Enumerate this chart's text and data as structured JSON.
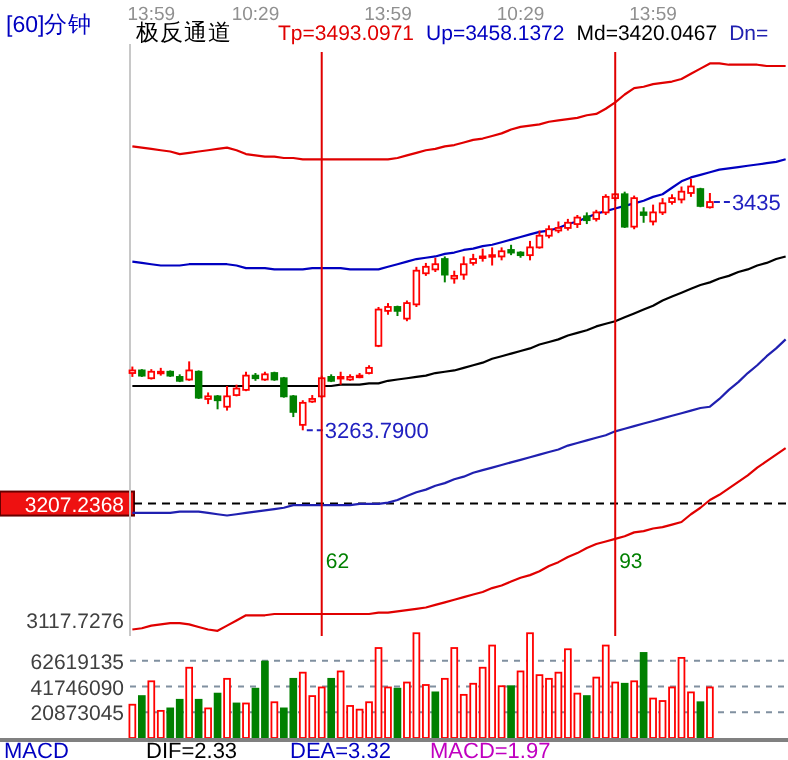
{
  "chart_data": [
    {
      "type": "candlestick",
      "title": "[60]分钟",
      "subtitle": "极反通道",
      "categories": [
        null,
        null,
        "13:59",
        null,
        null,
        null,
        null,
        null,
        null,
        null,
        null,
        null,
        null,
        "10:29",
        null,
        null,
        null,
        null,
        null,
        null,
        null,
        null,
        null,
        null,
        null,
        null,
        null,
        "13:59",
        null,
        null,
        null,
        null,
        null,
        null,
        null,
        null,
        null,
        null,
        null,
        null,
        null,
        "10:29",
        null,
        null,
        null,
        null,
        null,
        null,
        null,
        null,
        null,
        null,
        null,
        null,
        null,
        "13:59",
        null,
        null,
        null,
        null,
        null,
        null,
        null,
        null,
        null,
        null,
        null,
        null,
        null,
        null
      ],
      "ohlc": [
        [
          3308,
          3313,
          3305,
          3310
        ],
        [
          3310,
          3311,
          3305,
          3306
        ],
        [
          3304,
          3311,
          3303,
          3309
        ],
        [
          3308,
          3312,
          3306,
          3309
        ],
        [
          3309,
          3310,
          3305,
          3306
        ],
        [
          3305,
          3307,
          3301,
          3302
        ],
        [
          3303,
          3317,
          3302,
          3310
        ],
        [
          3309,
          3310,
          3288,
          3289
        ],
        [
          3288,
          3293,
          3284,
          3290
        ],
        [
          3290,
          3291,
          3280,
          3287
        ],
        [
          3282,
          3298,
          3279,
          3290
        ],
        [
          3291,
          3299,
          3290,
          3296
        ],
        [
          3295,
          3309,
          3294,
          3306
        ],
        [
          3306,
          3308,
          3302,
          3304
        ],
        [
          3303,
          3309,
          3302,
          3307
        ],
        [
          3308,
          3309,
          3302,
          3303
        ],
        [
          3304,
          3305,
          3289,
          3290
        ],
        [
          3290,
          3291,
          3274,
          3278
        ],
        [
          3268,
          3287,
          3263.79,
          3285
        ],
        [
          3286,
          3291,
          3285,
          3288
        ],
        [
          3290,
          3306,
          3289,
          3304
        ],
        [
          3305,
          3307,
          3301,
          3302
        ],
        [
          3304,
          3309,
          3299,
          3305
        ],
        [
          3303,
          3307,
          3302,
          3305
        ],
        [
          3305,
          3308,
          3304,
          3306
        ],
        [
          3308,
          3314,
          3307,
          3312
        ],
        [
          3329,
          3359,
          3328,
          3357
        ],
        [
          3356,
          3362,
          3353,
          3359
        ],
        [
          3359,
          3360,
          3352,
          3356
        ],
        [
          3350,
          3364,
          3348,
          3362
        ],
        [
          3361,
          3390,
          3359,
          3387
        ],
        [
          3385,
          3393,
          3383,
          3390
        ],
        [
          3388,
          3397,
          3386,
          3392
        ],
        [
          3396,
          3398,
          3378,
          3384
        ],
        [
          3381,
          3387,
          3377,
          3383
        ],
        [
          3384,
          3398,
          3380,
          3392
        ],
        [
          3393,
          3400,
          3391,
          3396
        ],
        [
          3397,
          3404,
          3394,
          3398
        ],
        [
          3398,
          3405,
          3391,
          3399
        ],
        [
          3398,
          3405,
          3395,
          3402
        ],
        [
          3403,
          3407,
          3399,
          3401
        ],
        [
          3401,
          3402,
          3397,
          3399
        ],
        [
          3399,
          3410,
          3395,
          3405
        ],
        [
          3405,
          3418,
          3404,
          3414
        ],
        [
          3414,
          3422,
          3412,
          3419
        ],
        [
          3418,
          3425,
          3416,
          3420
        ],
        [
          3420,
          3427,
          3418,
          3424
        ],
        [
          3423,
          3430,
          3420,
          3428
        ],
        [
          3429,
          3432,
          3423,
          3426
        ],
        [
          3427,
          3434,
          3425,
          3432
        ],
        [
          3432,
          3446,
          3430,
          3444
        ],
        [
          3443,
          3447,
          3441,
          3446
        ],
        [
          3446,
          3448,
          3420,
          3421
        ],
        [
          3421,
          3445,
          3419,
          3443
        ],
        [
          3432,
          3436,
          3424,
          3430
        ],
        [
          3425,
          3438,
          3422,
          3432
        ],
        [
          3432,
          3443,
          3430,
          3439
        ],
        [
          3440,
          3446,
          3438,
          3443
        ],
        [
          3442,
          3452,
          3439,
          3448
        ],
        [
          3447,
          3458,
          3444,
          3452
        ],
        [
          3450,
          3451,
          3436,
          3437
        ],
        [
          3436,
          3447,
          3435,
          3440
        ],
        null,
        null,
        null,
        null,
        null,
        null,
        null,
        null
      ],
      "colors": [
        "#ff0000",
        "#008000",
        "#ff0000",
        "#ff0000",
        "#008000",
        "#008000",
        "#ff0000",
        "#008000",
        "#ff0000",
        "#008000",
        "#ff0000",
        "#ff0000",
        "#ff0000",
        "#008000",
        "#ff0000",
        "#008000",
        "#008000",
        "#008000",
        "#ff0000",
        "#ff0000",
        "#ff0000",
        "#008000",
        "#ff0000",
        "#ff0000",
        "#ff0000",
        "#ff0000",
        "#ff0000",
        "#ff0000",
        "#008000",
        "#ff0000",
        "#ff0000",
        "#ff0000",
        "#ff0000",
        "#008000",
        "#ff0000",
        "#ff0000",
        "#ff0000",
        "#ff0000",
        "#ff0000",
        "#ff0000",
        "#008000",
        "#008000",
        "#ff0000",
        "#ff0000",
        "#ff0000",
        "#ff0000",
        "#ff0000",
        "#ff0000",
        "#008000",
        "#ff0000",
        "#ff0000",
        "#ff0000",
        "#008000",
        "#ff0000",
        "#008000",
        "#ff0000",
        "#ff0000",
        "#ff0000",
        "#ff0000",
        "#ff0000",
        "#008000",
        "#ff0000",
        null,
        null,
        null,
        null,
        null,
        null,
        null,
        null
      ],
      "series": [
        {
          "name": "Tp=3493.0971",
          "type": "line",
          "color": "#e00000",
          "values": [
            3483,
            3482,
            3481,
            3480,
            3479,
            3477,
            3478,
            3479,
            3480,
            3481,
            3482,
            3480,
            3477,
            3476,
            3475,
            3475,
            3474,
            3474,
            3473,
            3473,
            3473,
            3473,
            3473,
            3473,
            3473,
            3473,
            3473,
            3473,
            3474,
            3476,
            3478,
            3480,
            3481,
            3483,
            3484,
            3486,
            3488,
            3489,
            3491,
            3493,
            3496,
            3498,
            3499,
            3500,
            3502,
            3503,
            3504,
            3505,
            3507,
            3508,
            3512,
            3517,
            3523,
            3528,
            3529,
            3531,
            3532,
            3533,
            3535,
            3539,
            3543,
            3547,
            3547,
            3546,
            3546,
            3546,
            3546,
            3545,
            3545,
            3545
          ]
        },
        {
          "name": "Up=3458.1372",
          "type": "line",
          "color": "#0000c0",
          "values": [
            3394,
            3393,
            3392,
            3391,
            3391,
            3391,
            3392,
            3392,
            3392,
            3392,
            3392,
            3391,
            3389,
            3389,
            3389,
            3388,
            3388,
            3388,
            3388,
            3389,
            3389,
            3389,
            3389,
            3388,
            3388,
            3388,
            3388,
            3390,
            3392,
            3394,
            3396,
            3397,
            3398,
            3400,
            3401,
            3403,
            3404,
            3406,
            3407,
            3409,
            3411,
            3413,
            3415,
            3417,
            3418,
            3420,
            3423,
            3425,
            3428,
            3431,
            3433,
            3435,
            3437,
            3439,
            3441,
            3444,
            3446,
            3451,
            3456,
            3459,
            3461,
            3463,
            3465,
            3466,
            3467,
            3468,
            3469,
            3470,
            3471,
            3473
          ]
        },
        {
          "name": "Md=3420.0467",
          "type": "line",
          "color": "#000000",
          "values": [
            3298,
            3298,
            3298,
            3298,
            3298,
            3298,
            3298,
            3298,
            3298,
            3298,
            3298,
            3298,
            3298,
            3298,
            3298,
            3298,
            3298,
            3298,
            3298,
            3298,
            3298,
            3298,
            3299,
            3299,
            3299,
            3300,
            3300,
            3302,
            3303,
            3304,
            3305,
            3306,
            3308,
            3309,
            3310,
            3312,
            3314,
            3316,
            3319,
            3321,
            3323,
            3325,
            3327,
            3330,
            3332,
            3334,
            3337,
            3339,
            3341,
            3344,
            3346,
            3348,
            3351,
            3354,
            3357,
            3360,
            3364,
            3367,
            3370,
            3373,
            3376,
            3378,
            3381,
            3383,
            3386,
            3388,
            3391,
            3393,
            3396,
            3398
          ]
        },
        {
          "name": "Dn=",
          "type": "line",
          "color": "#2020b0",
          "values": [
            3200,
            3200,
            3200,
            3200,
            3200,
            3201,
            3201,
            3201,
            3200,
            3199,
            3198,
            3199,
            3200,
            3201,
            3202,
            3203,
            3204,
            3206,
            3206,
            3206,
            3206,
            3206,
            3206,
            3206,
            3207,
            3207,
            3207,
            3208,
            3210,
            3213,
            3216,
            3218,
            3221,
            3223,
            3226,
            3228,
            3231,
            3233,
            3235,
            3237,
            3239,
            3241,
            3243,
            3245,
            3247,
            3249,
            3252,
            3254,
            3256,
            3258,
            3260,
            3263,
            3265,
            3267,
            3269,
            3271,
            3273,
            3275,
            3277,
            3279,
            3281,
            3282,
            3288,
            3295,
            3301,
            3308,
            3314,
            3321,
            3327,
            3334
          ]
        },
        {
          "type": "line",
          "color": "#e00000",
          "values": [
            3110,
            3111,
            3113,
            3114,
            3115,
            3115,
            3114,
            3112,
            3110,
            3109,
            3113,
            3117,
            3121,
            3121,
            3121,
            3122,
            3122,
            3122,
            3122,
            3122,
            3122,
            3122,
            3122,
            3122,
            3122,
            3122,
            3123,
            3123,
            3124,
            3125,
            3126,
            3127,
            3129,
            3131,
            3133,
            3135,
            3137,
            3139,
            3142,
            3144,
            3147,
            3150,
            3152,
            3155,
            3159,
            3162,
            3166,
            3169,
            3173,
            3176,
            3178,
            3180,
            3182,
            3185,
            3186,
            3188,
            3189,
            3191,
            3193,
            3199,
            3204,
            3210,
            3214,
            3219,
            3224,
            3229,
            3235,
            3240,
            3245,
            3250
          ]
        }
      ],
      "ylim": [
        3105,
        3562
      ],
      "yticks": [
        3117.7276,
        3207.2368
      ],
      "legend": "top",
      "ref_lines": [
        {
          "axis": "y",
          "value": 3207.2368,
          "color": "#000000",
          "line_style": "dashed"
        }
      ],
      "annotations": [
        "3263.7900",
        "3435",
        "62",
        "93"
      ]
    },
    {
      "type": "bar",
      "categories": [
        null,
        null,
        null,
        null,
        null,
        null,
        null,
        null,
        null,
        null,
        null,
        null,
        null,
        null,
        null,
        null,
        null,
        null,
        null,
        null,
        null,
        null,
        null,
        null,
        null,
        null,
        null,
        null,
        null,
        null,
        null,
        null,
        null,
        null,
        null,
        null,
        null,
        null,
        null,
        null,
        null,
        null,
        null,
        null,
        null,
        null,
        null,
        null,
        null,
        null,
        null,
        null,
        null,
        null,
        null,
        null,
        null,
        null,
        null,
        null,
        null,
        null,
        null,
        null,
        null,
        null,
        null,
        null,
        null,
        null
      ],
      "values": [
        27000000,
        34000000,
        46000000,
        22000000,
        24000000,
        31000000,
        57000000,
        31000000,
        24000000,
        36000000,
        48000000,
        28000000,
        28000000,
        40000000,
        62000000,
        29000000,
        24000000,
        48000000,
        53000000,
        34000000,
        41000000,
        48000000,
        54000000,
        26000000,
        23000000,
        29000000,
        73000000,
        41000000,
        40000000,
        45000000,
        85000000,
        43000000,
        37000000,
        48000000,
        73000000,
        35000000,
        44000000,
        57000000,
        75000000,
        42000000,
        42000000,
        54000000,
        85000000,
        51000000,
        48000000,
        53000000,
        72000000,
        36000000,
        34000000,
        49000000,
        75000000,
        45000000,
        44000000,
        46000000,
        69000000,
        32000000,
        30000000,
        41000000,
        65000000,
        37000000,
        29000000,
        41000000,
        null,
        null,
        null,
        null,
        null,
        null,
        null,
        null
      ],
      "colors": [
        "#ff0000",
        "#008000",
        "#ff0000",
        "#ff0000",
        "#008000",
        "#008000",
        "#ff0000",
        "#008000",
        "#ff0000",
        "#008000",
        "#ff0000",
        "#008000",
        "#ff0000",
        "#008000",
        "#008000",
        "#ff0000",
        "#008000",
        "#008000",
        "#ff0000",
        "#ff0000",
        "#ff0000",
        "#008000",
        "#ff0000",
        "#ff0000",
        "#ff0000",
        "#ff0000",
        "#ff0000",
        "#ff0000",
        "#008000",
        "#ff0000",
        "#ff0000",
        "#ff0000",
        "#008000",
        "#ff0000",
        "#ff0000",
        "#ff0000",
        "#ff0000",
        "#ff0000",
        "#ff0000",
        "#ff0000",
        "#008000",
        "#ff0000",
        "#ff0000",
        "#ff0000",
        "#ff0000",
        "#ff0000",
        "#ff0000",
        "#ff0000",
        "#008000",
        "#ff0000",
        "#ff0000",
        "#ff0000",
        "#008000",
        "#ff0000",
        "#008000",
        "#ff0000",
        "#ff0000",
        "#ff0000",
        "#ff0000",
        "#ff0000",
        "#008000",
        "#ff0000",
        null,
        null,
        null,
        null,
        null,
        null,
        null,
        null
      ],
      "ylim": [
        0,
        86000000
      ],
      "yticks": [
        20873045,
        41746090,
        62619135
      ],
      "grid": "y",
      "tick_labels": "y"
    },
    {
      "type": "other",
      "annotations": [
        "MACD",
        "DIF=2.33",
        "DEA=3.32",
        "MACD=1.97"
      ]
    }
  ]
}
